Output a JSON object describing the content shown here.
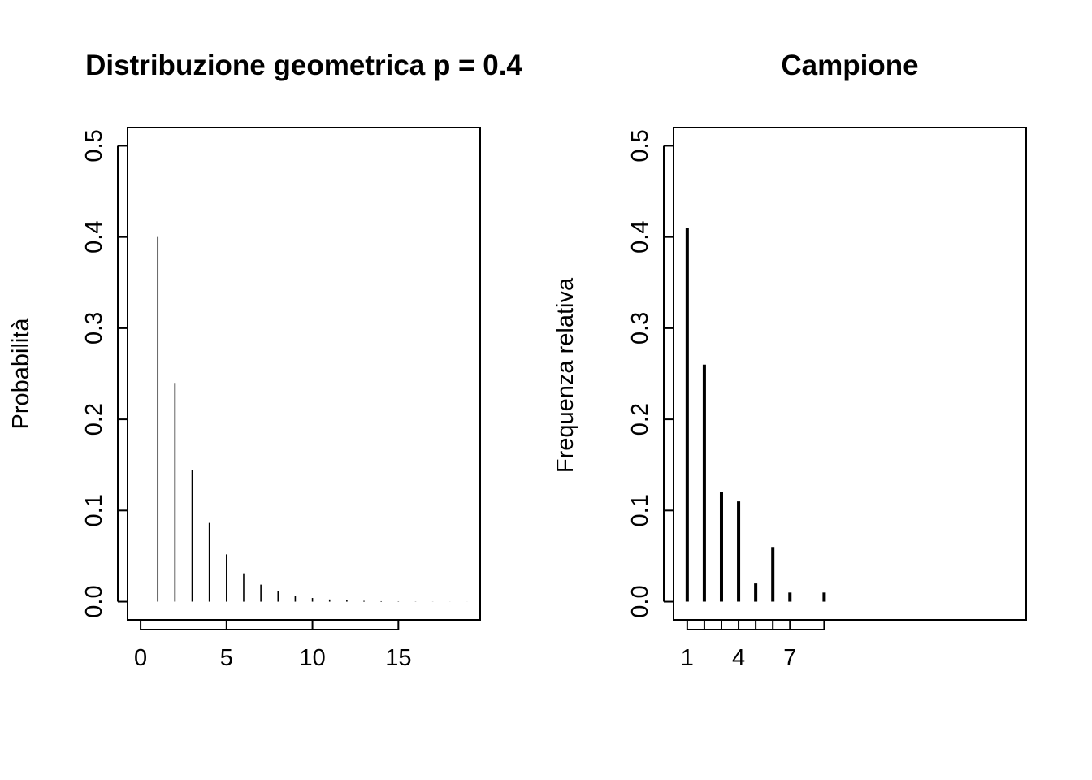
{
  "chart_data": [
    {
      "type": "bar",
      "title": "Distribuzione geometrica p = 0.4",
      "xlabel": "",
      "ylabel": "Probabilità",
      "x": [
        1,
        2,
        3,
        4,
        5,
        6,
        7,
        8,
        9,
        10,
        11,
        12,
        13,
        14,
        15,
        16,
        17,
        18,
        19
      ],
      "values": [
        0.4,
        0.24,
        0.144,
        0.0864,
        0.05184,
        0.031104,
        0.0186624,
        0.01119744,
        0.006718464,
        0.004031078,
        0.002418647,
        0.001451188,
        0.000870713,
        0.000522428,
        0.000313457,
        0.000188074,
        0.000112844,
        6.77066e-05,
        4.0624e-05
      ],
      "xlim": [
        -0.76,
        19.76
      ],
      "ylim": [
        -0.02,
        0.52
      ],
      "xticks": [
        0,
        5,
        10,
        15
      ],
      "xtick_labels": [
        "0",
        "5",
        "10",
        "15"
      ],
      "yticks": [
        0.0,
        0.1,
        0.2,
        0.3,
        0.4,
        0.5
      ],
      "ytick_labels": [
        "0.0",
        "0.1",
        "0.2",
        "0.3",
        "0.4",
        "0.5"
      ]
    },
    {
      "type": "bar",
      "title": "Campione",
      "xlabel": "",
      "ylabel": "Frequenza relativa",
      "x": [
        1,
        2,
        3,
        4,
        5,
        6,
        7,
        9
      ],
      "values": [
        0.41,
        0.26,
        0.12,
        0.11,
        0.02,
        0.06,
        0.01,
        0.01
      ],
      "xlim": [
        0.2,
        20.8
      ],
      "ylim": [
        -0.02,
        0.52
      ],
      "xticks": [
        1,
        2,
        3,
        4,
        5,
        6,
        7,
        9
      ],
      "xtick_labels": [
        "1",
        "",
        "",
        "4",
        "",
        "",
        "7",
        ""
      ],
      "yticks": [
        0.0,
        0.1,
        0.2,
        0.3,
        0.4,
        0.5
      ],
      "ytick_labels": [
        "0.0",
        "0.1",
        "0.2",
        "0.3",
        "0.4",
        "0.5"
      ]
    }
  ]
}
